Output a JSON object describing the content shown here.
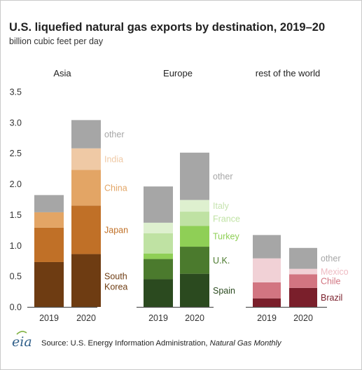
{
  "header": {
    "title": "U.S. liquefied natural gas exports by destination, 2019–20",
    "subtitle": "billion cubic feet per day"
  },
  "footer": {
    "logo_text": "eia",
    "source_text": "Source: U.S. Energy Information Administration, ",
    "source_publication": "Natural Gas Monthly"
  },
  "chart_data": {
    "type": "bar",
    "stacked": true,
    "ylim": [
      0,
      3.5
    ],
    "yticks": [
      "0.0",
      "0.5",
      "1.0",
      "1.5",
      "2.0",
      "2.5",
      "3.0",
      "3.5"
    ],
    "grid": false,
    "legend": "labels next to 2020 bars",
    "colors": {
      "axis": "#555555",
      "tick_text": "#333333",
      "other": "#a6a6a6"
    },
    "panels": [
      {
        "name": "Asia",
        "categories": [
          "2019",
          "2020"
        ],
        "series": [
          {
            "name": "South Korea",
            "values": [
              0.73,
              0.86
            ],
            "color": "#6e3c12",
            "label_color": "#6e3c12"
          },
          {
            "name": "Japan",
            "values": [
              0.56,
              0.79
            ],
            "color": "#c07027",
            "label_color": "#c07027"
          },
          {
            "name": "China",
            "values": [
              0.25,
              0.58
            ],
            "color": "#e3a565",
            "label_color": "#e3a565"
          },
          {
            "name": "India",
            "values": [
              0.0,
              0.35
            ],
            "color": "#efc9a5",
            "label_color": "#efc9a5"
          },
          {
            "name": "other",
            "values": [
              0.28,
              0.46
            ],
            "color": "#a6a6a6",
            "label_color": "#a6a6a6"
          }
        ]
      },
      {
        "name": "Europe",
        "categories": [
          "2019",
          "2020"
        ],
        "series": [
          {
            "name": "Spain",
            "values": [
              0.45,
              0.54
            ],
            "color": "#2b4a1f",
            "label_color": "#2b4a1f"
          },
          {
            "name": "U.K.",
            "values": [
              0.33,
              0.44
            ],
            "color": "#4b7a2d",
            "label_color": "#4b7a2d"
          },
          {
            "name": "Turkey",
            "values": [
              0.09,
              0.34
            ],
            "color": "#8fcf56",
            "label_color": "#8fcf56"
          },
          {
            "name": "France",
            "values": [
              0.33,
              0.23
            ],
            "color": "#bfe2a3",
            "label_color": "#bfe2a3"
          },
          {
            "name": "Italy",
            "values": [
              0.17,
              0.19
            ],
            "color": "#def0cf",
            "label_color": "#c6e3b0"
          },
          {
            "name": "other",
            "values": [
              0.59,
              0.77
            ],
            "color": "#a6a6a6",
            "label_color": "#a6a6a6"
          }
        ]
      },
      {
        "name": "rest of the world",
        "categories": [
          "2019",
          "2020"
        ],
        "series": [
          {
            "name": "Brazil",
            "values": [
              0.14,
              0.31
            ],
            "color": "#7a1f2b",
            "label_color": "#7a1f2b"
          },
          {
            "name": "Chile",
            "values": [
              0.26,
              0.22
            ],
            "color": "#d27581",
            "label_color": "#d27581"
          },
          {
            "name": "Mexico",
            "values": [
              0.39,
              0.09
            ],
            "color": "#f1d1d6",
            "label_color": "#eebac2"
          },
          {
            "name": "other",
            "values": [
              0.38,
              0.34
            ],
            "color": "#a6a6a6",
            "label_color": "#a6a6a6"
          }
        ]
      }
    ]
  }
}
